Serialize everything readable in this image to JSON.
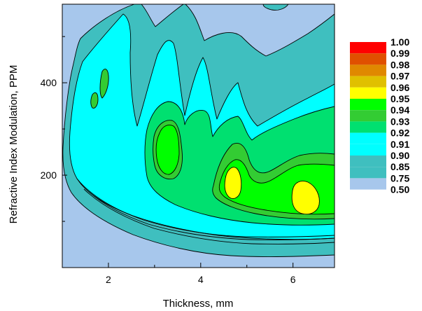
{
  "chart_data": {
    "type": "contour",
    "xlabel": "Thickness, mm",
    "ylabel": "Refractive Index Modulation, PPM",
    "xlim": [
      1.0,
      6.9
    ],
    "ylim": [
      0,
      570
    ],
    "x_ticks": [
      2,
      4,
      6
    ],
    "y_ticks": [
      200,
      400
    ],
    "legend_position": "right",
    "contour_levels": [
      {
        "label": "0.50",
        "color": "#a7c7ec"
      },
      {
        "label": "0.75",
        "color": "#a7c7ec"
      },
      {
        "label": "0.85",
        "color": "#3fbfbf"
      },
      {
        "label": "0.90",
        "color": "#3fbfbf"
      },
      {
        "label": "0.91",
        "color": "#00ffff"
      },
      {
        "label": "0.92",
        "color": "#00ffff"
      },
      {
        "label": "0.93",
        "color": "#00e070"
      },
      {
        "label": "0.94",
        "color": "#33cc33"
      },
      {
        "label": "0.95",
        "color": "#00ff00"
      },
      {
        "label": "0.96",
        "color": "#ffff00"
      },
      {
        "label": "0.97",
        "color": "#e0c000"
      },
      {
        "label": "0.98",
        "color": "#e08800"
      },
      {
        "label": "0.99",
        "color": "#e05000"
      },
      {
        "label": "1.00",
        "color": "#ff0000"
      }
    ],
    "regions": [
      {
        "name": "contour-band-085",
        "level": "0.85",
        "color": "#3fbfbf"
      },
      {
        "name": "contour-band-091",
        "level": "0.91",
        "color": "#00ffff"
      },
      {
        "name": "contour-band-093",
        "level": "0.93",
        "color": "#00e070"
      },
      {
        "name": "contour-band-094",
        "level": "0.94",
        "color": "#33cc33"
      },
      {
        "name": "contour-peak-095",
        "level": "0.95",
        "color": "#00ff00"
      },
      {
        "name": "contour-peak-096",
        "level": "0.96",
        "color": "#ffff00"
      }
    ]
  }
}
